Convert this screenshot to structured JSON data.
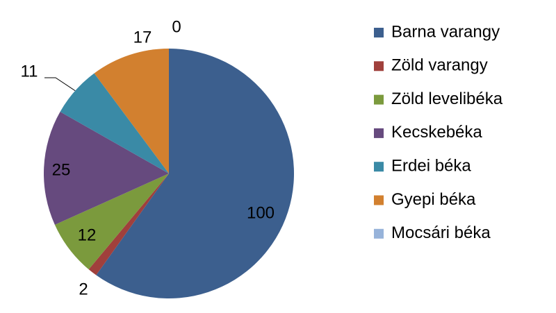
{
  "chart_data": {
    "type": "pie",
    "categories": [
      "Barna varangy",
      "Zöld varangy",
      "Zöld levelibéka",
      "Kecskebéka",
      "Erdei béka",
      "Gyepi béka",
      "Mocsári béka"
    ],
    "values": [
      100,
      2,
      12,
      25,
      11,
      17,
      0
    ],
    "colors": [
      "#3c5f8e",
      "#a0403c",
      "#7b9a3d",
      "#664a7e",
      "#3a8aa6",
      "#d2802f",
      "#97b3da"
    ],
    "legend": "right"
  }
}
